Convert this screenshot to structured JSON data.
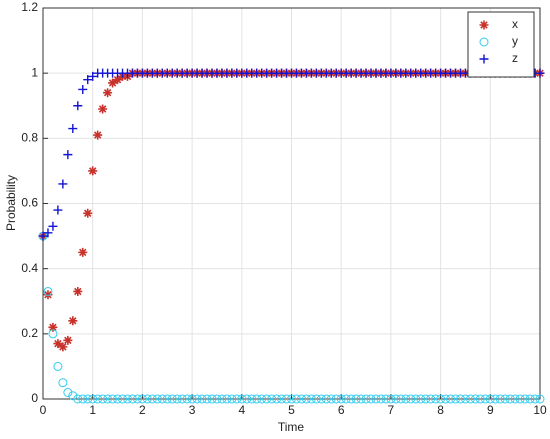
{
  "chart_data": {
    "type": "scatter",
    "xlabel": "Time",
    "ylabel": "Probability",
    "x": [
      0,
      0.1,
      0.2,
      0.3,
      0.4,
      0.5,
      0.6,
      0.7,
      0.8,
      0.9,
      1,
      1.1,
      1.2,
      1.3,
      1.4,
      1.5,
      1.6,
      1.7,
      1.8,
      1.9,
      2,
      2.1,
      2.2,
      2.3,
      2.4,
      2.5,
      2.6,
      2.7,
      2.8,
      2.9,
      3,
      3.1,
      3.2,
      3.3,
      3.4,
      3.5,
      3.6,
      3.7,
      3.8,
      3.9,
      4,
      4.1,
      4.2,
      4.3,
      4.4,
      4.5,
      4.6,
      4.7,
      4.8,
      4.9,
      5,
      5.1,
      5.2,
      5.3,
      5.4,
      5.5,
      5.6,
      5.7,
      5.8,
      5.9,
      6,
      6.1,
      6.2,
      6.3,
      6.4,
      6.5,
      6.6,
      6.7,
      6.8,
      6.9,
      7,
      7.1,
      7.2,
      7.3,
      7.4,
      7.5,
      7.6,
      7.7,
      7.8,
      7.9,
      8,
      8.1,
      8.2,
      8.3,
      8.4,
      8.5,
      8.6,
      8.7,
      8.8,
      8.9,
      9,
      9.1,
      9.2,
      9.3,
      9.4,
      9.5,
      9.6,
      9.7,
      9.8,
      9.9,
      10
    ],
    "series": [
      {
        "name": "x",
        "color": "#c8322a",
        "marker": "star",
        "values": [
          0.5,
          0.32,
          0.22,
          0.17,
          0.16,
          0.18,
          0.24,
          0.33,
          0.45,
          0.57,
          0.7,
          0.81,
          0.89,
          0.94,
          0.97,
          0.98,
          0.99,
          0.99,
          1,
          1,
          1,
          1,
          1,
          1,
          1,
          1,
          1,
          1,
          1,
          1,
          1,
          1,
          1,
          1,
          1,
          1,
          1,
          1,
          1,
          1,
          1,
          1,
          1,
          1,
          1,
          1,
          1,
          1,
          1,
          1,
          1,
          1,
          1,
          1,
          1,
          1,
          1,
          1,
          1,
          1,
          1,
          1,
          1,
          1,
          1,
          1,
          1,
          1,
          1,
          1,
          1,
          1,
          1,
          1,
          1,
          1,
          1,
          1,
          1,
          1,
          1,
          1,
          1,
          1,
          1,
          1,
          1,
          1,
          1,
          1,
          1,
          1,
          1,
          1,
          1,
          1,
          1,
          1,
          1,
          1,
          1
        ]
      },
      {
        "name": "y",
        "color": "#33ccee",
        "marker": "circle",
        "values": [
          0.5,
          0.33,
          0.2,
          0.1,
          0.05,
          0.02,
          0.01,
          0,
          0,
          0,
          0,
          0,
          0,
          0,
          0,
          0,
          0,
          0,
          0,
          0,
          0,
          0,
          0,
          0,
          0,
          0,
          0,
          0,
          0,
          0,
          0,
          0,
          0,
          0,
          0,
          0,
          0,
          0,
          0,
          0,
          0,
          0,
          0,
          0,
          0,
          0,
          0,
          0,
          0,
          0,
          0,
          0,
          0,
          0,
          0,
          0,
          0,
          0,
          0,
          0,
          0,
          0,
          0,
          0,
          0,
          0,
          0,
          0,
          0,
          0,
          0,
          0,
          0,
          0,
          0,
          0,
          0,
          0,
          0,
          0,
          0,
          0,
          0,
          0,
          0,
          0,
          0,
          0,
          0,
          0,
          0,
          0,
          0,
          0,
          0,
          0,
          0,
          0,
          0,
          0,
          0
        ]
      },
      {
        "name": "z",
        "color": "#1414d2",
        "marker": "plus",
        "values": [
          0.5,
          0.51,
          0.53,
          0.58,
          0.66,
          0.75,
          0.83,
          0.9,
          0.95,
          0.98,
          0.99,
          1,
          1,
          1,
          1,
          1,
          1,
          1,
          1,
          1,
          1,
          1,
          1,
          1,
          1,
          1,
          1,
          1,
          1,
          1,
          1,
          1,
          1,
          1,
          1,
          1,
          1,
          1,
          1,
          1,
          1,
          1,
          1,
          1,
          1,
          1,
          1,
          1,
          1,
          1,
          1,
          1,
          1,
          1,
          1,
          1,
          1,
          1,
          1,
          1,
          1,
          1,
          1,
          1,
          1,
          1,
          1,
          1,
          1,
          1,
          1,
          1,
          1,
          1,
          1,
          1,
          1,
          1,
          1,
          1,
          1,
          1,
          1,
          1,
          1,
          1,
          1,
          1,
          1,
          1,
          1,
          1,
          1,
          1,
          1,
          1,
          1,
          1,
          1,
          1,
          1
        ]
      }
    ],
    "xlim": [
      0,
      10
    ],
    "xticks": [
      0,
      1,
      2,
      3,
      4,
      5,
      6,
      7,
      8,
      9,
      10
    ],
    "ylim": [
      0,
      1.2
    ],
    "yticks": [
      0,
      0.2,
      0.4,
      0.6,
      0.8,
      1,
      1.2
    ],
    "grid": true,
    "legend": "upper-right"
  }
}
